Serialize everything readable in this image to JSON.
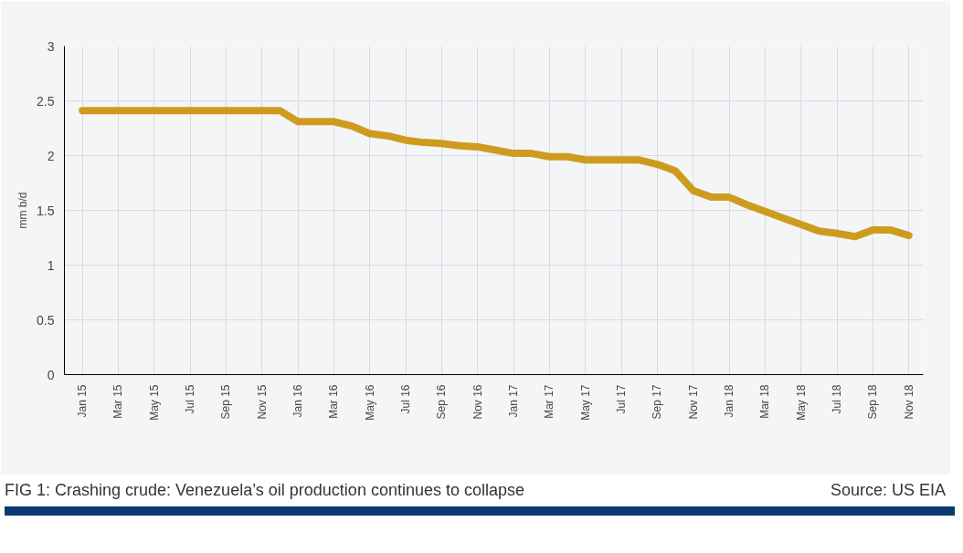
{
  "chart_data": {
    "type": "line",
    "title": "FIG 1: Crashing crude: Venezuela’s oil production continues to collapse",
    "ylabel": "mm b/d",
    "annotations": [
      "Source: US EIA"
    ],
    "categories": [
      "Jan 15",
      null,
      "Mar 15",
      null,
      "May 15",
      null,
      "Jul 15",
      null,
      "Sep 15",
      null,
      "Nov 15",
      null,
      "Jan 16",
      null,
      "Mar 16",
      null,
      "May 16",
      null,
      "Jul 16",
      null,
      "Sep 16",
      null,
      "Nov 16",
      null,
      "Jan 17",
      null,
      "Mar 17",
      null,
      "May 17",
      null,
      "Jul 17",
      null,
      "Sep 17",
      null,
      "Nov 17",
      null,
      "Jan 18",
      null,
      "Mar 18",
      null,
      "May 18",
      null,
      "Jul 18",
      null,
      "Sep 18",
      null,
      "Nov 18"
    ],
    "series": [
      {
        "color": "#cf9b1f",
        "values": [
          2.41,
          2.41,
          2.41,
          2.41,
          2.41,
          2.41,
          2.41,
          2.41,
          2.41,
          2.41,
          2.41,
          2.41,
          2.31,
          2.31,
          2.31,
          2.27,
          2.2,
          2.18,
          2.14,
          2.12,
          2.11,
          2.09,
          2.08,
          2.05,
          2.02,
          2.02,
          1.99,
          1.99,
          1.96,
          1.96,
          1.96,
          1.96,
          1.92,
          1.86,
          1.68,
          1.62,
          1.62,
          1.55,
          1.49,
          1.43,
          1.37,
          1.31,
          1.29,
          1.26,
          1.32,
          1.32,
          1.27
        ]
      }
    ],
    "ylim": [
      0,
      3
    ],
    "yticks": [
      0,
      0.5,
      1,
      1.5,
      2,
      2.5,
      3
    ],
    "grid": true,
    "line_style": "solid",
    "marker": "none"
  }
}
